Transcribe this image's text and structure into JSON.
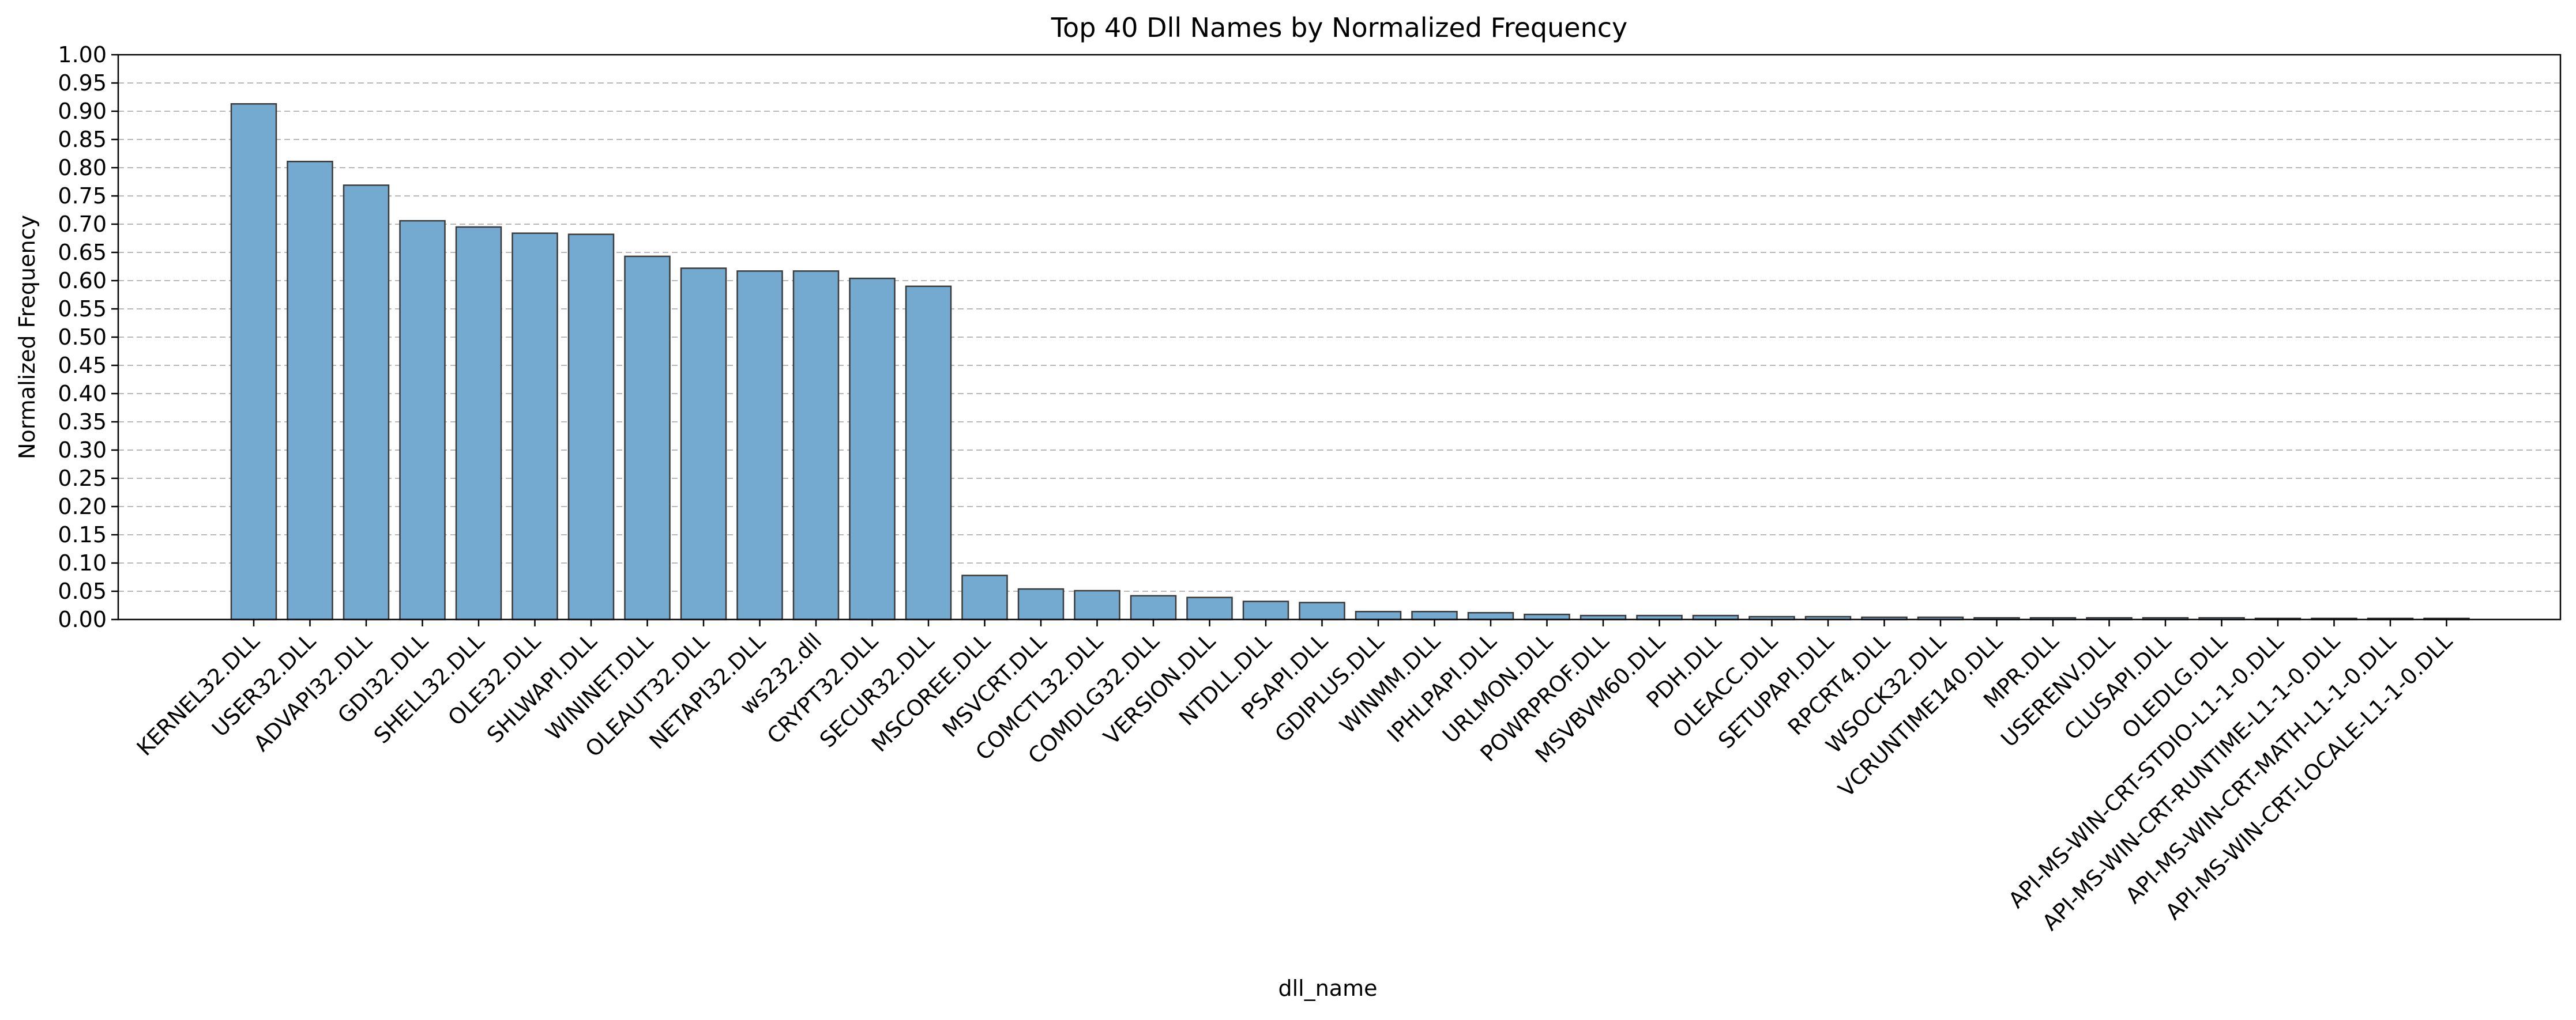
{
  "chart_data": {
    "type": "bar",
    "title": "Top 40 Dll Names by Normalized Frequency",
    "xlabel": "dll_name",
    "ylabel": "Normalized Frequency",
    "ylim": [
      0,
      1.0
    ],
    "yticks": [
      "0.00",
      "0.05",
      "0.10",
      "0.15",
      "0.20",
      "0.25",
      "0.30",
      "0.35",
      "0.40",
      "0.45",
      "0.50",
      "0.55",
      "0.60",
      "0.65",
      "0.70",
      "0.75",
      "0.80",
      "0.85",
      "0.90",
      "0.95",
      "1.00"
    ],
    "grid": "y, dashed",
    "bar_color": "#74aad0",
    "bar_edge_color": "#3a3a3a",
    "categories": [
      "KERNEL32.DLL",
      "USER32.DLL",
      "ADVAPI32.DLL",
      "GDI32.DLL",
      "SHELL32.DLL",
      "OLE32.DLL",
      "SHLWAPI.DLL",
      "WININET.DLL",
      "OLEAUT32.DLL",
      "NETAPI32.DLL",
      "ws232.dll",
      "CRYPT32.DLL",
      "SECUR32.DLL",
      "MSCOREE.DLL",
      "MSVCRT.DLL",
      "COMCTL32.DLL",
      "COMDLG32.DLL",
      "VERSION.DLL",
      "NTDLL.DLL",
      "PSAPI.DLL",
      "GDIPLUS.DLL",
      "WINMM.DLL",
      "IPHLPAPI.DLL",
      "URLMON.DLL",
      "POWRPROF.DLL",
      "MSVBVM60.DLL",
      "PDH.DLL",
      "OLEACC.DLL",
      "SETUPAPI.DLL",
      "RPCRT4.DLL",
      "WSOCK32.DLL",
      "VCRUNTIME140.DLL",
      "MPR.DLL",
      "USERENV.DLL",
      "CLUSAPI.DLL",
      "OLEDLG.DLL",
      "API-MS-WIN-CRT-STDIO-L1-1-0.DLL",
      "API-MS-WIN-CRT-RUNTIME-L1-1-0.DLL",
      "API-MS-WIN-CRT-MATH-L1-1-0.DLL",
      "API-MS-WIN-CRT-LOCALE-L1-1-0.DLL"
    ],
    "values": [
      0.913,
      0.811,
      0.769,
      0.706,
      0.695,
      0.684,
      0.682,
      0.643,
      0.622,
      0.617,
      0.617,
      0.604,
      0.59,
      0.078,
      0.054,
      0.051,
      0.042,
      0.039,
      0.032,
      0.03,
      0.014,
      0.014,
      0.012,
      0.009,
      0.007,
      0.007,
      0.007,
      0.005,
      0.005,
      0.004,
      0.004,
      0.003,
      0.003,
      0.003,
      0.003,
      0.003,
      0.002,
      0.002,
      0.002,
      0.002
    ]
  }
}
